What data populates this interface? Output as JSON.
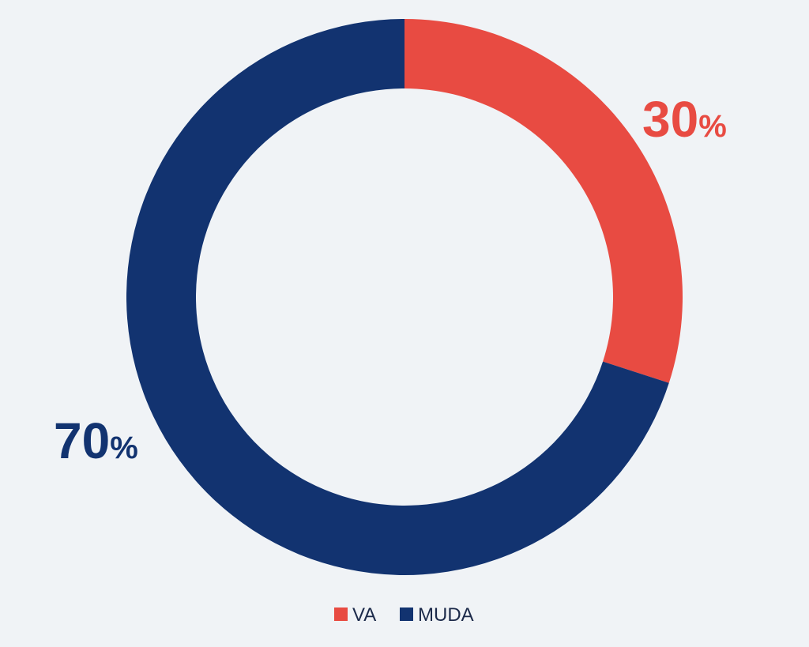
{
  "chart_data": {
    "type": "pie",
    "variant": "donut",
    "categories": [
      "VA",
      "MUDA"
    ],
    "values": [
      30,
      70
    ],
    "value_labels": [
      "30%",
      "70%"
    ],
    "colors": [
      "#e84b42",
      "#123370"
    ],
    "legend": {
      "placement": "bottom-center",
      "entries": [
        "VA",
        "MUDA"
      ]
    }
  }
}
